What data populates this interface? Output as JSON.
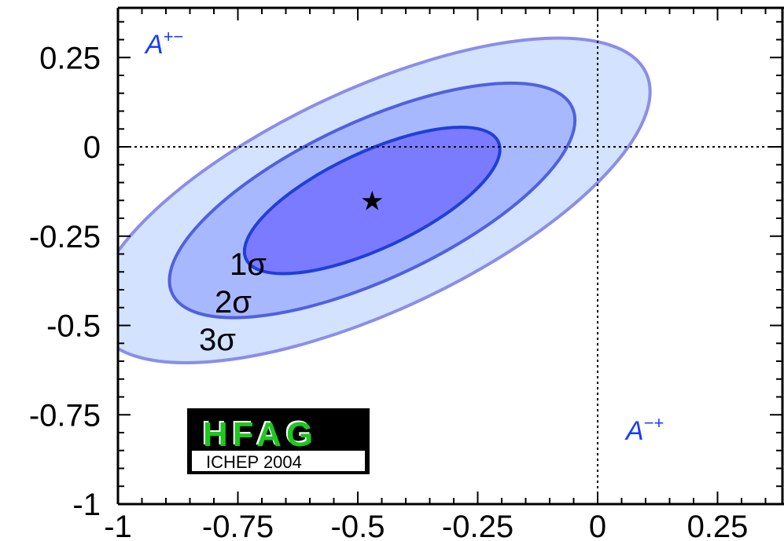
{
  "chart_data": {
    "type": "contour",
    "xlim": [
      -1,
      0.4
    ],
    "ylim": [
      -1,
      0.4
    ],
    "x_ticks": [
      -1,
      -0.75,
      -0.5,
      -0.25,
      0,
      0.25
    ],
    "y_ticks": [
      0.25,
      0,
      -0.25,
      -0.5,
      -0.75,
      -1
    ],
    "x_tick_labels": [
      "-1",
      "-0.75",
      "-0.5",
      "-0.25",
      "0",
      "0.25"
    ],
    "y_tick_labels": [
      "0.25",
      "0",
      "-0.25",
      "-0.5",
      "-0.75",
      "-1"
    ],
    "xlabel": "A",
    "xlabel_sup": "−+",
    "ylabel": "A",
    "ylabel_sup": "+−",
    "best_fit": {
      "x": -0.47,
      "y": -0.15
    },
    "contours": [
      {
        "name": "1σ",
        "label": "1σ",
        "center": [
          -0.47,
          -0.15
        ],
        "semi_major": 0.29,
        "semi_minor": 0.135,
        "angle_deg": 25,
        "fill": "#7b7bff",
        "stroke": "#1f3fd8"
      },
      {
        "name": "2σ",
        "label": "2σ",
        "center": [
          -0.47,
          -0.15
        ],
        "semi_major": 0.46,
        "semi_minor": 0.22,
        "angle_deg": 25,
        "fill": "#a8b8ff",
        "stroke": "#5060e0"
      },
      {
        "name": "3σ",
        "label": "3σ",
        "center": [
          -0.47,
          -0.15
        ],
        "semi_major": 0.63,
        "semi_minor": 0.31,
        "angle_deg": 25,
        "fill": "#d2e2ff",
        "stroke": "#8a8ee8"
      }
    ],
    "reference_lines": {
      "x": 0,
      "y": 0
    },
    "grid": false
  },
  "logo": {
    "main": "HFAG",
    "sub": "ICHEP 2004",
    "main_color": "#1ec81e"
  }
}
